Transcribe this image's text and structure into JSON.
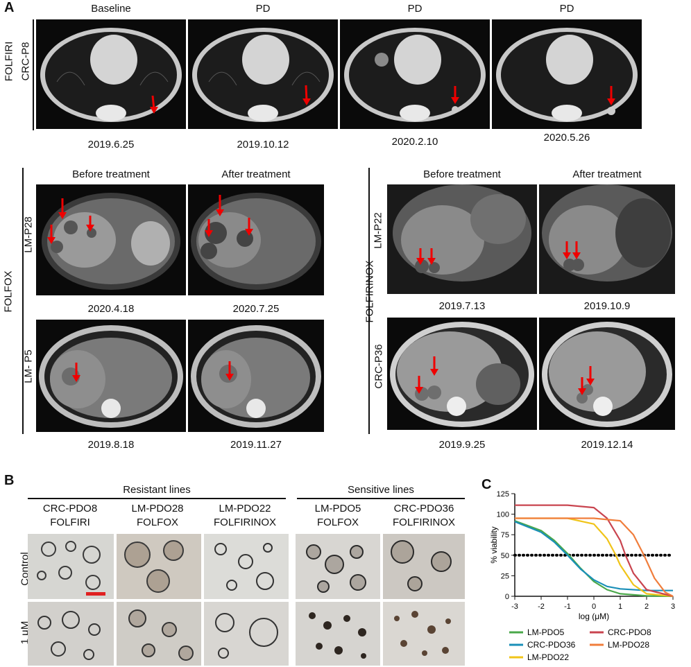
{
  "panel_a": {
    "letter": "A",
    "folfiri": {
      "regimen": "FOLFIRI",
      "patient": "CRC-P8",
      "timepoints": [
        "Baseline",
        "PD",
        "PD",
        "PD"
      ],
      "dates": [
        "2019.6.25",
        "2019.10.12",
        "2020.2.10",
        "2020.5.26"
      ]
    },
    "folfox": {
      "regimen": "FOLFOX",
      "headers": [
        "Before treatment",
        "After treatment"
      ],
      "patients": [
        {
          "id": "LM-P28",
          "dates": [
            "2020.4.18",
            "2020.7.25"
          ]
        },
        {
          "id": "LM- P5",
          "dates": [
            "2019.8.18",
            "2019.11.27"
          ]
        }
      ]
    },
    "folfirinox": {
      "regimen": "FOLFIRINOX",
      "headers": [
        "Before treatment",
        "After treatment"
      ],
      "patients": [
        {
          "id": "LM-P22",
          "dates": [
            "2019.7.13",
            "2019.10.9"
          ]
        },
        {
          "id": "CRC-P36",
          "dates": [
            "2019.9.25",
            "2019.12.14"
          ]
        }
      ]
    }
  },
  "panel_b": {
    "letter": "B",
    "group_resistant": "Resistant lines",
    "group_sensitive": "Sensitive lines",
    "columns": [
      {
        "line1": "CRC-PDO8",
        "line2": "FOLFIRI"
      },
      {
        "line1": "LM-PDO28",
        "line2": "FOLFOX"
      },
      {
        "line1": "LM-PDO22",
        "line2": "FOLFIRINOX"
      },
      {
        "line1": "LM-PDO5",
        "line2": "FOLFOX"
      },
      {
        "line1": "CRC-PDO36",
        "line2": "FOLFIRINOX"
      }
    ],
    "rows": [
      "Control",
      "1 μM"
    ]
  },
  "panel_c": {
    "letter": "C"
  },
  "chart_data": {
    "type": "line",
    "xlabel": "log (μM)",
    "ylabel": "% viability",
    "xlim": [
      -3,
      3
    ],
    "ylim": [
      0,
      125
    ],
    "xticks": [
      -3,
      -2,
      -1,
      0,
      1,
      2,
      3
    ],
    "yticks": [
      0,
      25,
      50,
      75,
      100,
      125
    ],
    "reference_line": {
      "y": 50,
      "style": "dotted"
    },
    "series": [
      {
        "name": "LM-PDO5",
        "color": "#4aa84a",
        "x": [
          -3,
          -2,
          -1.5,
          -1,
          -0.5,
          0,
          0.5,
          1,
          2,
          3
        ],
        "values": [
          92,
          80,
          68,
          52,
          34,
          18,
          8,
          3,
          0.5,
          0
        ]
      },
      {
        "name": "CRC-PDO36",
        "color": "#1a8fb8",
        "x": [
          -3,
          -2,
          -1.5,
          -1,
          -0.5,
          0,
          0.5,
          1,
          2,
          3
        ],
        "values": [
          91,
          78,
          66,
          50,
          33,
          20,
          12,
          9,
          7,
          7
        ]
      },
      {
        "name": "LM-PDO22",
        "color": "#f0c419",
        "x": [
          -3,
          -1,
          0,
          0.5,
          0.8,
          1,
          1.5,
          2,
          3
        ],
        "values": [
          95,
          95,
          88,
          70,
          52,
          38,
          14,
          3,
          0
        ]
      },
      {
        "name": "CRC-PDO8",
        "color": "#c9444f",
        "x": [
          -3,
          -1,
          0,
          0.5,
          1,
          1.2,
          1.5,
          2,
          3
        ],
        "values": [
          111,
          111,
          108,
          95,
          68,
          50,
          28,
          8,
          0
        ]
      },
      {
        "name": "LM-PDO28",
        "color": "#f07d3b",
        "x": [
          -3,
          -1,
          0,
          1,
          1.5,
          1.9,
          2.3,
          2.7,
          3
        ],
        "values": [
          95,
          95,
          95,
          92,
          75,
          50,
          22,
          5,
          0
        ]
      }
    ],
    "legend_order": [
      "LM-PDO5",
      "CRC-PDO8",
      "CRC-PDO36",
      "LM-PDO28",
      "LM-PDO22"
    ]
  }
}
